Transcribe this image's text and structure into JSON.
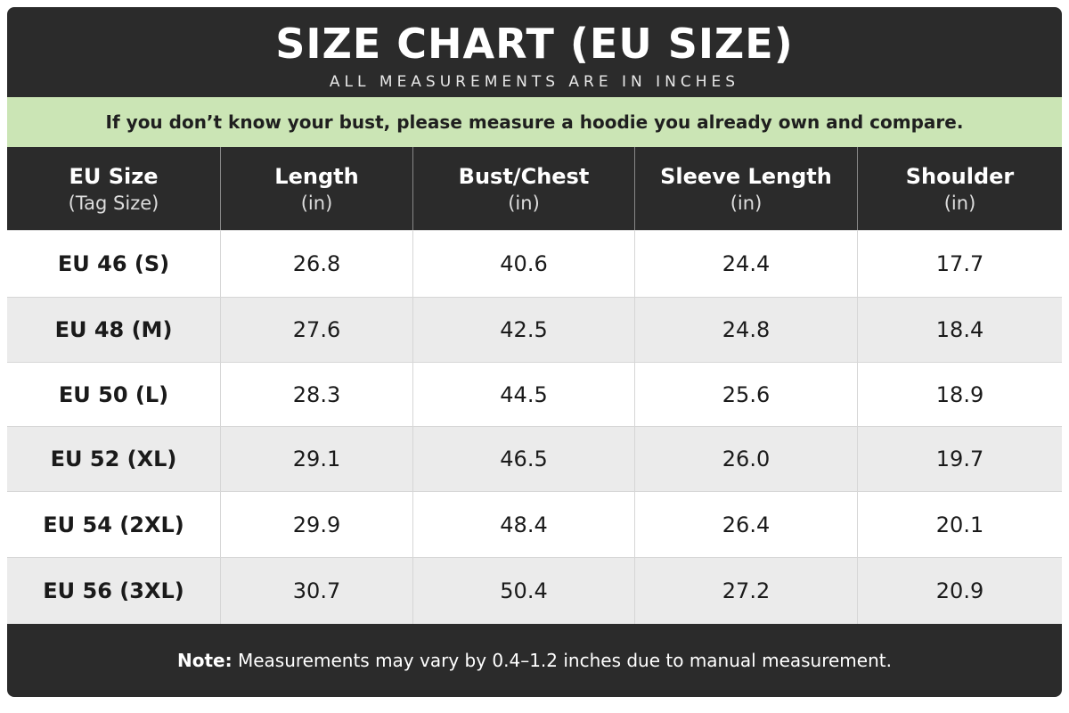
{
  "header": {
    "title": "SIZE CHART (EU SIZE)",
    "subtitle": "ALL MEASUREMENTS ARE IN INCHES"
  },
  "notice": "If you don’t know your bust, please measure a hoodie you already own and compare.",
  "table": {
    "columns": [
      {
        "name": "EU Size",
        "unit": "(Tag Size)"
      },
      {
        "name": "Length",
        "unit": "(in)"
      },
      {
        "name": "Bust/Chest",
        "unit": "(in)"
      },
      {
        "name": "Sleeve Length",
        "unit": "(in)"
      },
      {
        "name": "Shoulder",
        "unit": "(in)"
      }
    ],
    "rows": [
      [
        "EU 46 (S)",
        "26.8",
        "40.6",
        "24.4",
        "17.7"
      ],
      [
        "EU 48 (M)",
        "27.6",
        "42.5",
        "24.8",
        "18.4"
      ],
      [
        "EU 50 (L)",
        "28.3",
        "44.5",
        "25.6",
        "18.9"
      ],
      [
        "EU 52 (XL)",
        "29.1",
        "46.5",
        "26.0",
        "19.7"
      ],
      [
        "EU 54 (2XL)",
        "29.9",
        "48.4",
        "26.4",
        "20.1"
      ],
      [
        "EU 56 (3XL)",
        "30.7",
        "50.4",
        "27.2",
        "20.9"
      ]
    ]
  },
  "footer": {
    "note_label": "Note:",
    "note_text": "Measurements may vary by 0.4–1.2 inches due to manual measurement."
  }
}
